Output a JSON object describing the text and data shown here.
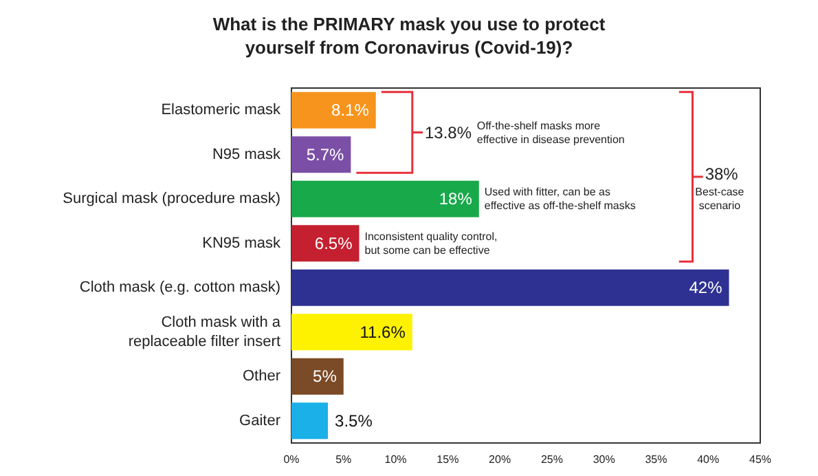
{
  "chart_data": {
    "type": "bar",
    "orientation": "horizontal",
    "title": "What is the PRIMARY mask you use to protect\nyourself from Coronavirus (Covid-19)?",
    "categories": [
      "Elastomeric mask",
      "N95 mask",
      "Surgical mask (procedure mask)",
      "KN95 mask",
      "Cloth mask (e.g. cotton mask)",
      "Cloth mask with a\nreplaceable filter insert",
      "Other",
      "Gaiter"
    ],
    "values": [
      8.1,
      5.7,
      18,
      6.5,
      42,
      11.6,
      5,
      3.5
    ],
    "colors": [
      "#f7941d",
      "#7b4fa6",
      "#18a94a",
      "#c4202f",
      "#2e3192",
      "#fff200",
      "#7b4a26",
      "#1bb0e8"
    ],
    "value_labels": [
      "8.1%",
      "5.7%",
      "18%",
      "6.5%",
      "42%",
      "11.6%",
      "5%",
      "3.5%"
    ],
    "xlim": [
      0,
      45
    ],
    "xticks": [
      {
        "value": 0,
        "label": "0%"
      },
      {
        "value": 5,
        "label": "5%"
      },
      {
        "value": 10,
        "label": "10%"
      },
      {
        "value": 15,
        "label": "15%"
      },
      {
        "value": 20,
        "label": "20%"
      },
      {
        "value": 25,
        "label": "25%"
      },
      {
        "value": 30,
        "label": "30%"
      },
      {
        "value": 35,
        "label": "35%"
      },
      {
        "value": 40,
        "label": "40%"
      },
      {
        "value": 45,
        "label": "45%"
      }
    ],
    "grid": false,
    "annotations": [
      "13.8%",
      "Off-the-shelf masks more\neffective in disease prevention",
      "Used with fitter, can be as\neffective as off-the-shelf masks",
      "Inconsistent quality control,\nbut some can be effective",
      "38%",
      "Best-case\nscenario"
    ]
  }
}
